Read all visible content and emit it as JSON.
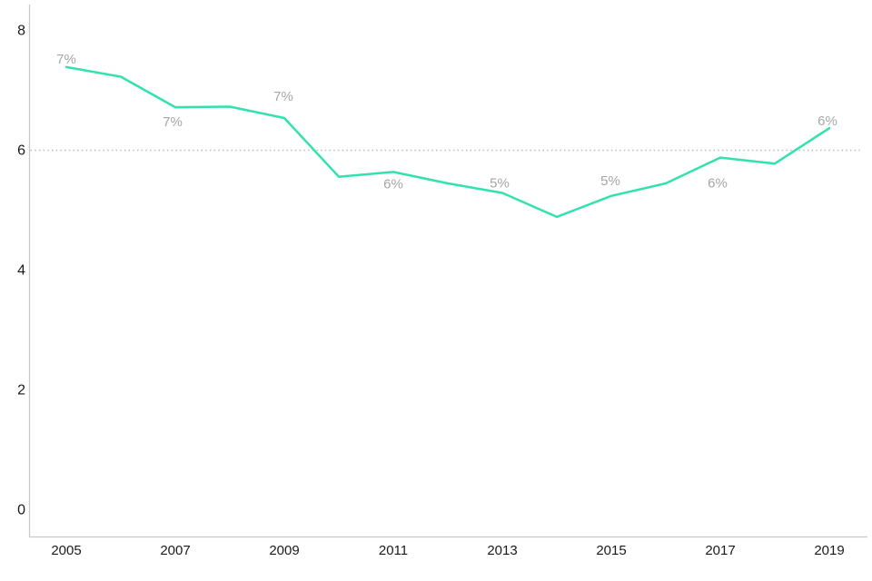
{
  "chart_data": {
    "type": "line",
    "title": "",
    "xlabel": "",
    "ylabel": "",
    "x": [
      2005,
      2006,
      2007,
      2008,
      2009,
      2010,
      2011,
      2012,
      2013,
      2014,
      2015,
      2016,
      2017,
      2018,
      2019
    ],
    "series": [
      {
        "name": "percent",
        "values": [
          7.38,
          7.22,
          6.71,
          6.72,
          6.53,
          5.55,
          5.63,
          5.44,
          5.28,
          4.88,
          5.23,
          5.44,
          5.87,
          5.77,
          6.36
        ]
      }
    ],
    "point_labels": [
      "7%",
      null,
      "7%",
      null,
      "7%",
      null,
      "6%",
      null,
      "5%",
      null,
      "5%",
      null,
      "6%",
      null,
      "6%"
    ],
    "label_offsets": [
      [
        0,
        -4
      ],
      null,
      [
        -3,
        21
      ],
      null,
      [
        -1,
        -19
      ],
      null,
      [
        0,
        18
      ],
      null,
      [
        -3,
        -6
      ],
      null,
      [
        -1,
        -12
      ],
      null,
      [
        -3,
        33
      ],
      null,
      [
        -2,
        -3
      ]
    ],
    "y_ticks": [
      "0",
      "2",
      "4",
      "6",
      "8"
    ],
    "y_tick_values": [
      0,
      2,
      4,
      6,
      8
    ],
    "x_tick_labels": [
      "2005",
      "2007",
      "2009",
      "2011",
      "2013",
      "2015",
      "2017",
      "2019"
    ],
    "x_tick_years": [
      2005,
      2007,
      2009,
      2011,
      2013,
      2015,
      2017,
      2019
    ],
    "ylim": [
      0,
      8.45
    ],
    "grid": "off",
    "legend": "none",
    "reference_line": {
      "value": 6,
      "style": "dotted"
    },
    "colors": {
      "line": "#31e2af",
      "point_label": "#a6a6a6",
      "axis": "#c9c9c9",
      "reference": "#bbbbbb",
      "tick_label": "#1a1a1a",
      "background": "#ffffff"
    }
  }
}
